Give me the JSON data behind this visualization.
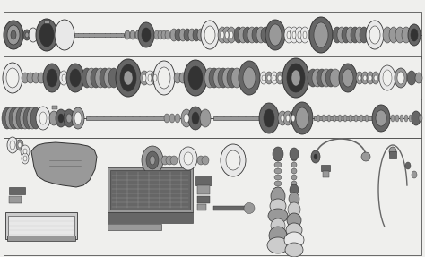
{
  "bg_color": "#efefed",
  "dark": "#333333",
  "mid": "#666666",
  "light": "#999999",
  "vlight": "#cccccc",
  "white": "#e8e8e8",
  "fig_width": 4.74,
  "fig_height": 2.87,
  "dpi": 100
}
